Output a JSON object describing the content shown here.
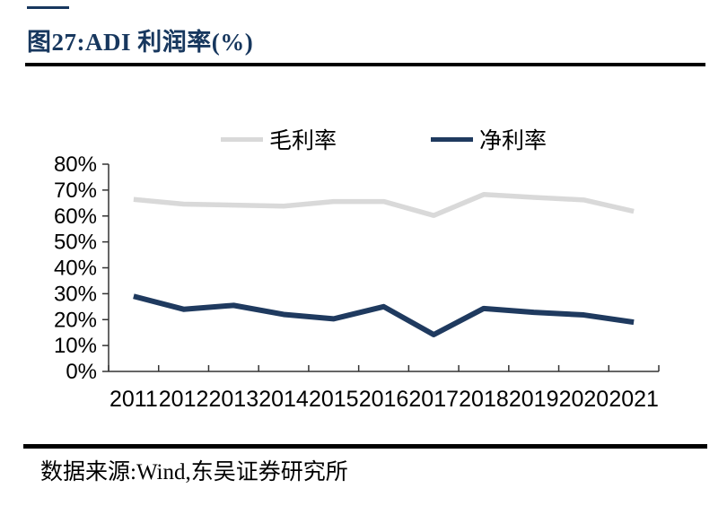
{
  "figure": {
    "title": "图27:ADI 利润率(%)",
    "source_text": "数据来源:Wind,东吴证券研究所"
  },
  "colors": {
    "title_navy": "#17375e",
    "divider_black": "#000000",
    "gross_margin_gray": "#d9d9d9",
    "net_margin_navy": "#1f3a5f",
    "axis": "#333333",
    "text": "#000000"
  },
  "chart_data": {
    "type": "line",
    "title": "ADI 利润率(%)",
    "categories": [
      "2011",
      "2012",
      "2013",
      "2014",
      "2015",
      "2016",
      "2017",
      "2018",
      "2019",
      "2020",
      "2021"
    ],
    "series": [
      {
        "name": "毛利率",
        "color": "#d9d9d9",
        "values": [
          66.4,
          64.6,
          64.2,
          63.8,
          65.6,
          65.6,
          60.2,
          68.3,
          67.2,
          66.2,
          61.8
        ]
      },
      {
        "name": "净利率",
        "color": "#1f3a5f",
        "values": [
          29.0,
          24.0,
          25.5,
          22.0,
          20.3,
          25.0,
          14.2,
          24.3,
          22.8,
          21.8,
          19.0
        ]
      }
    ],
    "ylim": [
      0,
      80
    ],
    "ytick_step": 10,
    "ytick_suffix": "%",
    "ytick_labels": [
      "0%",
      "10%",
      "20%",
      "30%",
      "40%",
      "50%",
      "60%",
      "70%",
      "80%"
    ],
    "xlabel": "",
    "ylabel": "",
    "grid": false,
    "legend_position": "top",
    "axis_color": "#333333"
  }
}
